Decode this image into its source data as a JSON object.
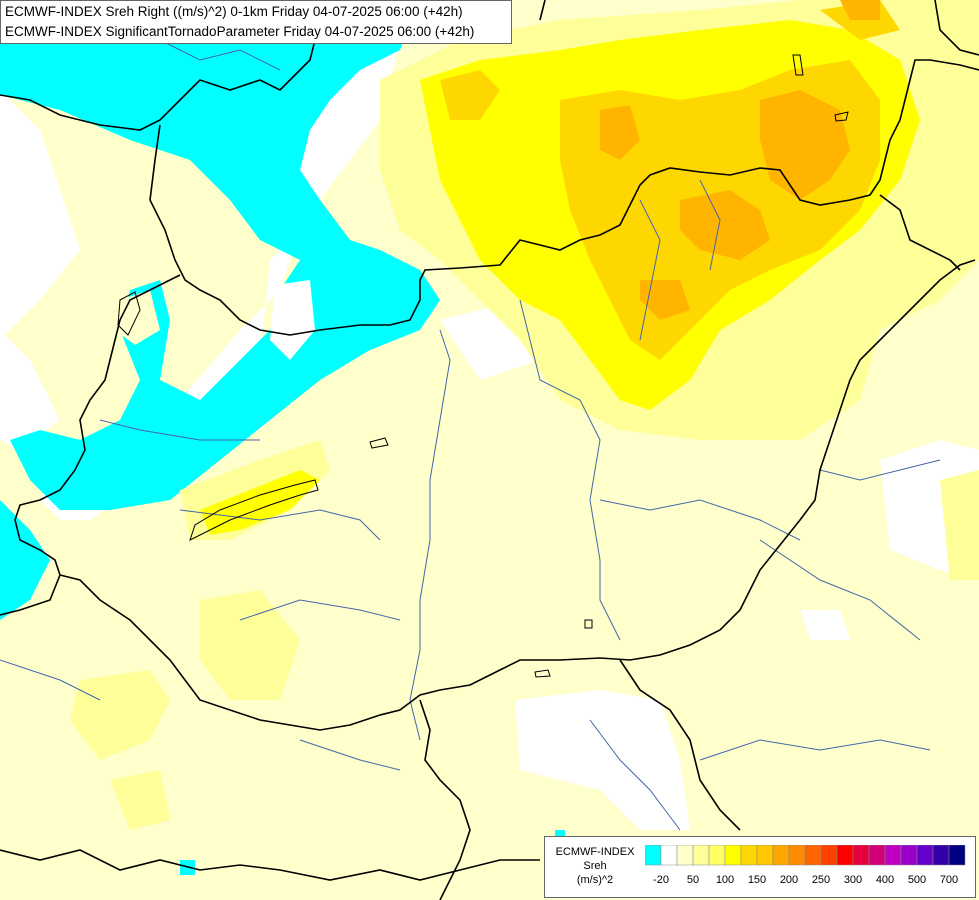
{
  "header": {
    "line1": "ECMWF-INDEX Sreh Right ((m/s)^2) 0-1km Friday 04-07-2025 06:00 (+42h)",
    "line2": "ECMWF-INDEX SignificantTornadoParameter Friday 04-07-2025 06:00 (+42h)"
  },
  "legend": {
    "title": "ECMWF-INDEX",
    "variable": "Sreh",
    "unit": "(m/s)^2",
    "colors": [
      "#00ffff",
      "#ffffff",
      "#ffffcc",
      "#ffff99",
      "#ffff66",
      "#ffff00",
      "#ffd700",
      "#ffc800",
      "#ffa500",
      "#ff8c00",
      "#ff6400",
      "#ff4000",
      "#ff0000",
      "#e6003c",
      "#d20078",
      "#c000c0",
      "#9900cc",
      "#6600cc",
      "#3300aa",
      "#000080"
    ],
    "tick_labels": [
      "-20",
      "50",
      "100",
      "150",
      "200",
      "250",
      "300",
      "400",
      "500",
      "700"
    ]
  },
  "colors": {
    "cyan_zone": "#00ffff",
    "pale_yellow_bg": "#ffffcc",
    "light_yellow": "#ffff99",
    "yellow": "#ffff00",
    "gold": "#ffd700",
    "orange": "#ffa500",
    "border": "#000000",
    "rivers": "#4466aa"
  }
}
